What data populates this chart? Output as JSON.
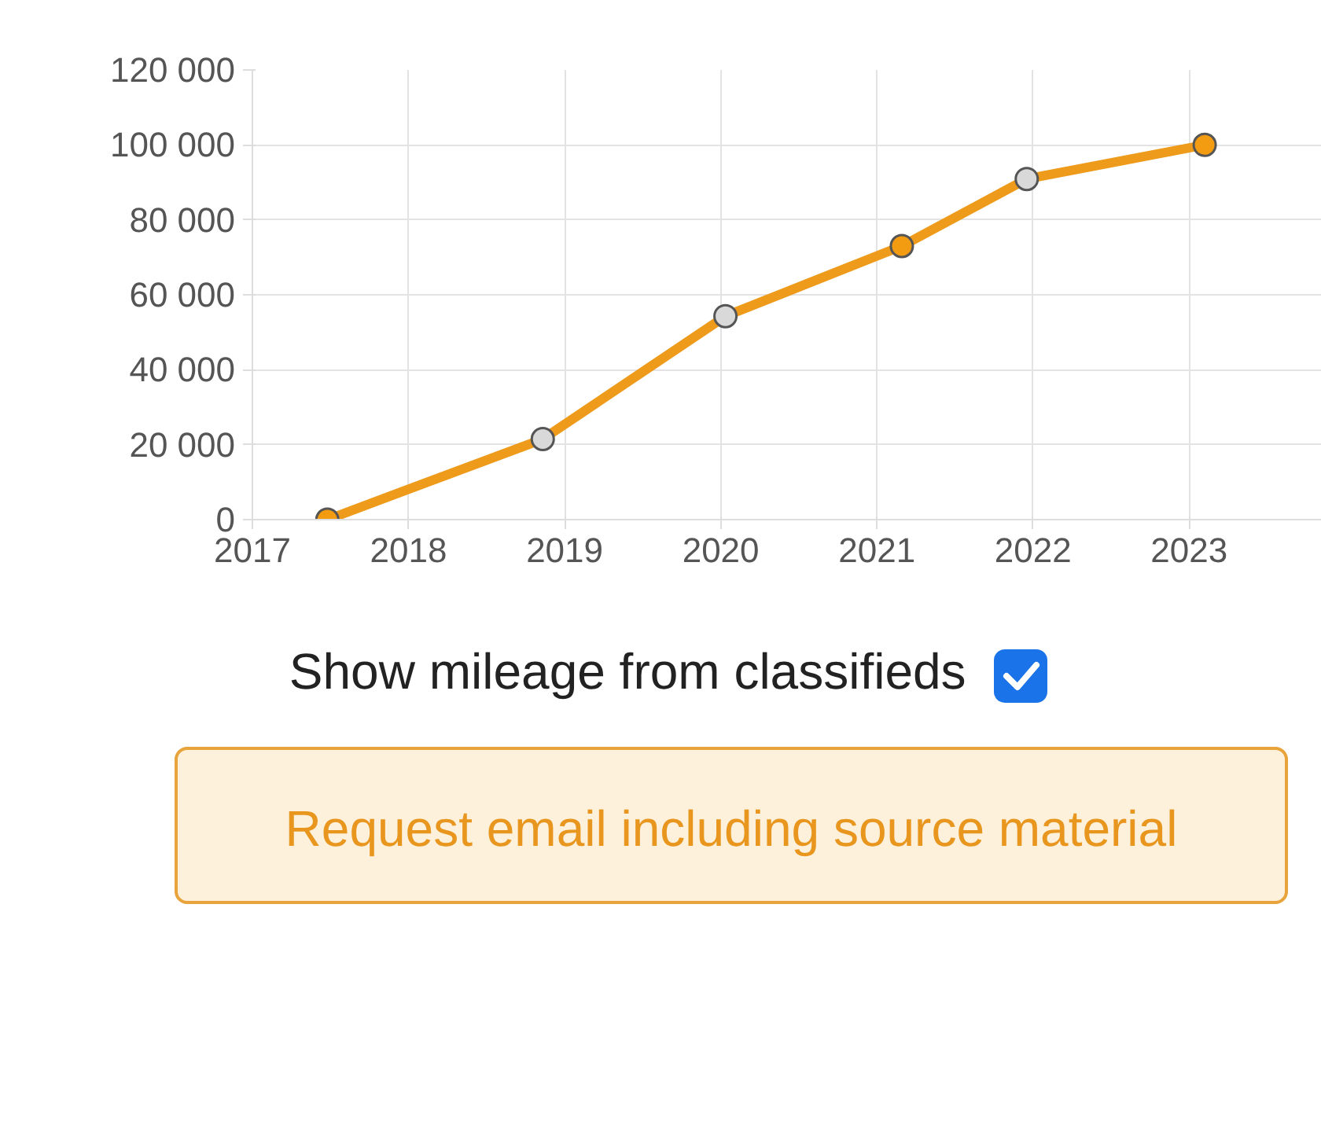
{
  "chart_data": {
    "type": "line",
    "x": [
      2017.48,
      2018.86,
      2020.03,
      2021.16,
      2021.96,
      2023.1
    ],
    "series": [
      {
        "color": "#ee9a1a",
        "colors": [
          "#f39c12",
          "#d9d9d9",
          "#d9d9d9",
          "#f39c12",
          "#d9d9d9",
          "#f39c12"
        ],
        "values": [
          0,
          21500,
          54300,
          73000,
          90900,
          100000
        ]
      }
    ],
    "xlim": [
      2017,
      2023.85
    ],
    "xticks": [
      2017,
      2018,
      2019,
      2020,
      2021,
      2022,
      2023
    ],
    "ylim": [
      0,
      120000
    ],
    "yticks": [
      {
        "value": 0,
        "label": "0"
      },
      {
        "value": 20000,
        "label": "20 000"
      },
      {
        "value": 40000,
        "label": "40 000"
      },
      {
        "value": 60000,
        "label": "60 000"
      },
      {
        "value": 80000,
        "label": "80 000"
      },
      {
        "value": 100000,
        "label": "100 000"
      },
      {
        "value": 120000,
        "label": "120 000"
      }
    ],
    "grid": true,
    "marker": "circle",
    "line_style": "solid",
    "annotations": [
      "Show mileage from classifieds",
      "Request email including source material"
    ]
  }
}
